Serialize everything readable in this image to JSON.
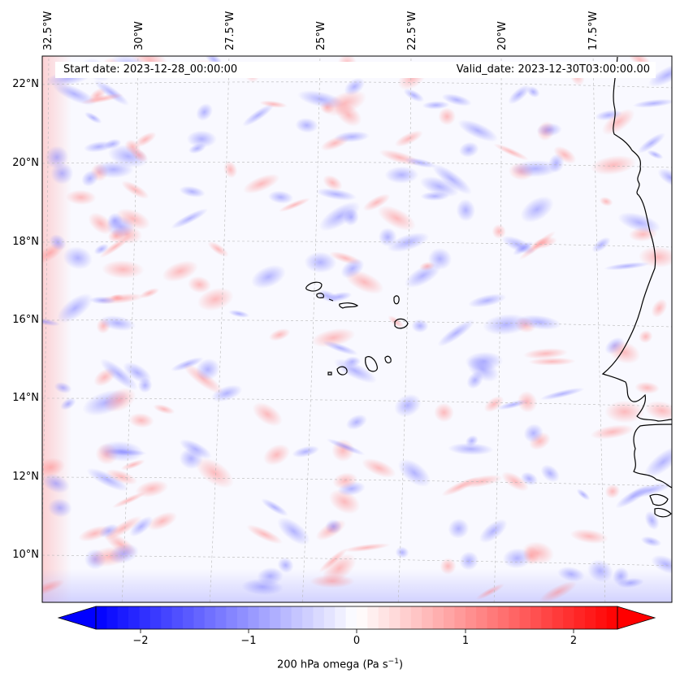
{
  "map": {
    "start_date_label": "Start date: 2023-12-28_00:00:00",
    "valid_date_label": "Valid_date: 2023-12-30T03:00:00.00",
    "lon_ticks": [
      "32.5°W",
      "30°W",
      "27.5°W",
      "25°W",
      "22.5°W",
      "20°W",
      "17.5°W"
    ],
    "lat_ticks": [
      "22°N",
      "20°N",
      "18°N",
      "16°N",
      "14°N",
      "12°N",
      "10°N"
    ],
    "field": "200 hPa omega",
    "colors": {
      "negative": "#0000ff",
      "positive": "#ff0000",
      "neutral": "#ffffff",
      "coast": "#000000",
      "grid": "#aaaaaa"
    }
  },
  "colorbar": {
    "label_prefix": "200 hPa omega (Pa s",
    "label_exp": "−1",
    "label_suffix": ")",
    "tick_labels": [
      "−2",
      "−1",
      "0",
      "1",
      "2"
    ],
    "range": [
      -2.6,
      2.6
    ]
  }
}
